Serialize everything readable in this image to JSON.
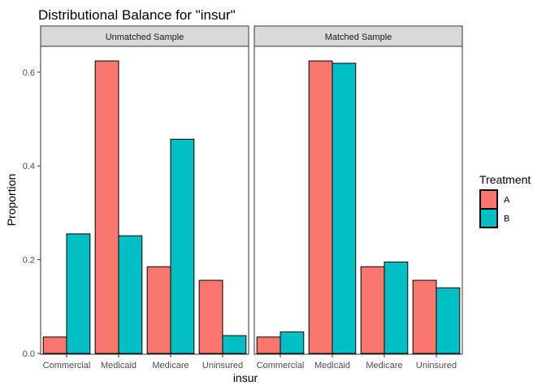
{
  "chart_data": {
    "type": "bar",
    "title": "Distributional Balance for \"insur\"",
    "xlabel": "insur",
    "ylabel": "Proportion",
    "ylim": [
      0,
      0.65
    ],
    "yticks": [
      0.0,
      0.2,
      0.4,
      0.6
    ],
    "ytick_labels": [
      "0.0",
      "0.2",
      "0.4",
      "0.6"
    ],
    "categories": [
      "Commercial",
      "Medicaid",
      "Medicare",
      "Uninsured"
    ],
    "grid": false,
    "legend": {
      "title": "Treatment",
      "position": "right",
      "entries": [
        {
          "name": "A",
          "color": "#F8766D"
        },
        {
          "name": "B",
          "color": "#00BFC4"
        }
      ]
    },
    "panels": [
      {
        "name": "Unmatched Sample",
        "series": [
          {
            "name": "A",
            "values": [
              0.035,
              0.624,
              0.185,
              0.156
            ]
          },
          {
            "name": "B",
            "values": [
              0.255,
              0.251,
              0.457,
              0.038
            ]
          }
        ]
      },
      {
        "name": "Matched Sample",
        "series": [
          {
            "name": "A",
            "values": [
              0.035,
              0.624,
              0.185,
              0.156
            ]
          },
          {
            "name": "B",
            "values": [
              0.046,
              0.619,
              0.195,
              0.14
            ]
          }
        ]
      }
    ]
  }
}
